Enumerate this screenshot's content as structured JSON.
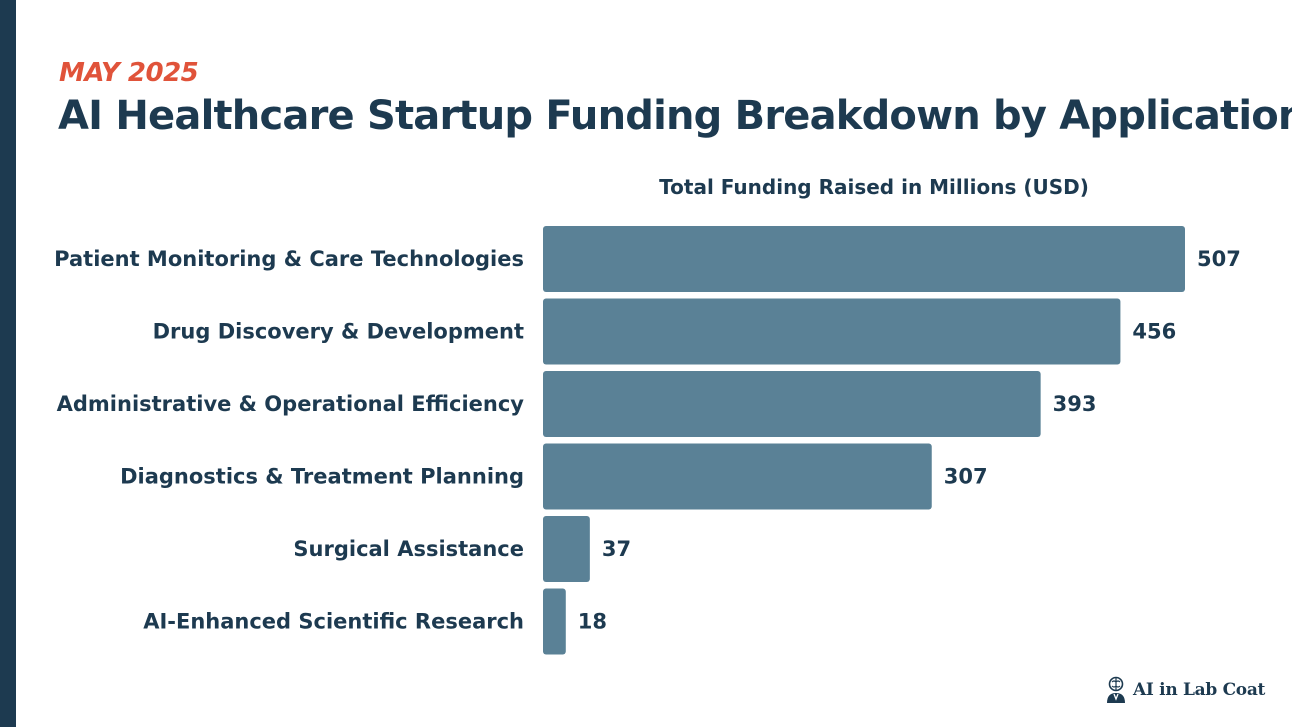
{
  "header": {
    "date": "MAY 2025",
    "title": "AI Healthcare Startup Funding Breakdown by Application"
  },
  "chart_data": {
    "type": "bar",
    "orientation": "horizontal",
    "title": "Total Funding Raised in Millions (USD)",
    "categories": [
      "Patient Monitoring & Care Technologies",
      "Drug Discovery & Development",
      "Administrative & Operational Efficiency",
      "Diagnostics & Treatment Planning",
      "Surgical Assistance",
      "AI-Enhanced Scientific Research"
    ],
    "values": [
      507,
      456,
      393,
      307,
      37,
      18
    ],
    "xlabel": "Total Funding Raised in Millions (USD)",
    "ylabel": "",
    "xlim": [
      0,
      507
    ],
    "grid": false,
    "legend": "none"
  },
  "colors": {
    "bar": "#5a8196",
    "text": "#1d3a50",
    "accent": "#e0533a",
    "sidebar": "#1d3a50"
  },
  "brand": {
    "name": "AI in Lab Coat",
    "icon": "brain-scientist-icon"
  }
}
